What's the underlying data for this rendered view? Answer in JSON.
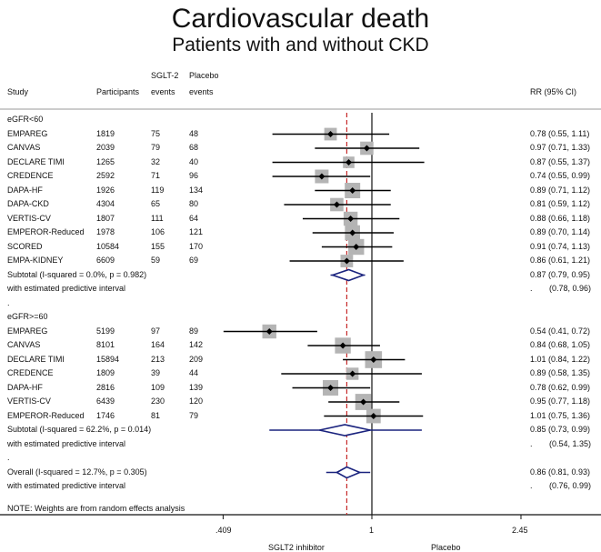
{
  "chart_data": {
    "type": "forest",
    "title": "Cardiovascular death",
    "subtitle": "Patients with and without CKD",
    "headers": {
      "study": "Study",
      "participants": "Participants",
      "sglt2_line1": "SGLT-2",
      "sglt2_line2": "events",
      "placebo_line1": "Placebo",
      "placebo_line2": "events",
      "rr": "RR (95% CI)"
    },
    "x_scale": "log",
    "xticks": [
      0.409,
      1,
      2.45
    ],
    "xtick_labels": [
      ".409",
      "1",
      "2.45"
    ],
    "xlabel_left": "SGLT2 inhibitor",
    "xlabel_right": "Placebo",
    "null_line": 1,
    "overall_line": 0.86,
    "rows": [
      {
        "kind": "group",
        "label": "eGFR<60"
      },
      {
        "kind": "study",
        "label": "EMPAREG",
        "n": "1819",
        "sglt2": "75",
        "placebo": "48",
        "rr": 0.78,
        "lo": 0.55,
        "hi": 1.11,
        "text": "0.78 (0.55, 1.11)",
        "weight": 0.6
      },
      {
        "kind": "study",
        "label": "CANVAS",
        "n": "2039",
        "sglt2": "79",
        "placebo": "68",
        "rr": 0.97,
        "lo": 0.71,
        "hi": 1.33,
        "text": "0.97 (0.71, 1.33)",
        "weight": 0.7
      },
      {
        "kind": "study",
        "label": "DECLARE TIMI",
        "n": "1265",
        "sglt2": "32",
        "placebo": "40",
        "rr": 0.87,
        "lo": 0.55,
        "hi": 1.37,
        "text": "0.87 (0.55, 1.37)",
        "weight": 0.45
      },
      {
        "kind": "study",
        "label": "CREDENCE",
        "n": "2592",
        "sglt2": "71",
        "placebo": "96",
        "rr": 0.74,
        "lo": 0.55,
        "hi": 0.99,
        "text": "0.74 (0.55, 0.99)",
        "weight": 0.75
      },
      {
        "kind": "study",
        "label": "DAPA-HF",
        "n": "1926",
        "sglt2": "119",
        "placebo": "134",
        "rr": 0.89,
        "lo": 0.71,
        "hi": 1.12,
        "text": "0.89 (0.71, 1.12)",
        "weight": 1.0
      },
      {
        "kind": "study",
        "label": "DAPA-CKD",
        "n": "4304",
        "sglt2": "65",
        "placebo": "80",
        "rr": 0.81,
        "lo": 0.59,
        "hi": 1.12,
        "text": "0.81 (0.59, 1.12)",
        "weight": 0.7
      },
      {
        "kind": "study",
        "label": "VERTIS-CV",
        "n": "1807",
        "sglt2": "111",
        "placebo": "64",
        "rr": 0.88,
        "lo": 0.66,
        "hi": 1.18,
        "text": "0.88 (0.66, 1.18)",
        "weight": 0.8
      },
      {
        "kind": "study",
        "label": "EMPEROR-Reduced",
        "n": "1978",
        "sglt2": "106",
        "placebo": "121",
        "rr": 0.89,
        "lo": 0.7,
        "hi": 1.14,
        "text": "0.89 (0.70, 1.14)",
        "weight": 0.95
      },
      {
        "kind": "study",
        "label": "SCORED",
        "n": "10584",
        "sglt2": "155",
        "placebo": "170",
        "rr": 0.91,
        "lo": 0.74,
        "hi": 1.13,
        "text": "0.91 (0.74, 1.13)",
        "weight": 1.05
      },
      {
        "kind": "study",
        "label": "EMPA-KIDNEY",
        "n": "6609",
        "sglt2": "59",
        "placebo": "69",
        "rr": 0.86,
        "lo": 0.61,
        "hi": 1.21,
        "text": "0.86 (0.61, 1.21)",
        "weight": 0.6
      },
      {
        "kind": "subtotal",
        "label": "Subtotal  (I-squared = 0.0%, p = 0.982)",
        "rr": 0.87,
        "lo": 0.79,
        "hi": 0.95,
        "text": "0.87 (0.79, 0.95)",
        "pi_lo": 0.78,
        "pi_hi": 0.96
      },
      {
        "kind": "pi",
        "label": "with estimated predictive interval",
        "dot": ".",
        "text": "(0.78, 0.96)"
      },
      {
        "kind": "blank",
        "label": "."
      },
      {
        "kind": "group",
        "label": "eGFR>=60"
      },
      {
        "kind": "study",
        "label": "EMPAREG",
        "n": "5199",
        "sglt2": "97",
        "placebo": "89",
        "rr": 0.54,
        "lo": 0.41,
        "hi": 0.72,
        "text": "0.54 (0.41, 0.72)",
        "weight": 0.8
      },
      {
        "kind": "study",
        "label": "CANVAS",
        "n": "8101",
        "sglt2": "164",
        "placebo": "142",
        "rr": 0.84,
        "lo": 0.68,
        "hi": 1.05,
        "text": "0.84 (0.68, 1.05)",
        "weight": 1.05
      },
      {
        "kind": "study",
        "label": "DECLARE TIMI",
        "n": "15894",
        "sglt2": "213",
        "placebo": "209",
        "rr": 1.01,
        "lo": 0.84,
        "hi": 1.22,
        "text": "1.01 (0.84, 1.22)",
        "weight": 1.2
      },
      {
        "kind": "study",
        "label": "CREDENCE",
        "n": "1809",
        "sglt2": "39",
        "placebo": "44",
        "rr": 0.89,
        "lo": 0.58,
        "hi": 1.35,
        "text": "0.89 (0.58, 1.35)",
        "weight": 0.55
      },
      {
        "kind": "study",
        "label": "DAPA-HF",
        "n": "2816",
        "sglt2": "109",
        "placebo": "139",
        "rr": 0.78,
        "lo": 0.62,
        "hi": 0.99,
        "text": "0.78 (0.62, 0.99)",
        "weight": 1.0
      },
      {
        "kind": "study",
        "label": "VERTIS-CV",
        "n": "6439",
        "sglt2": "230",
        "placebo": "120",
        "rr": 0.95,
        "lo": 0.77,
        "hi": 1.18,
        "text": "0.95 (0.77, 1.18)",
        "weight": 1.1
      },
      {
        "kind": "study",
        "label": "EMPEROR-Reduced",
        "n": "1746",
        "sglt2": "81",
        "placebo": "79",
        "rr": 1.01,
        "lo": 0.75,
        "hi": 1.36,
        "text": "1.01 (0.75, 1.36)",
        "weight": 0.85
      },
      {
        "kind": "subtotal",
        "label": "Subtotal  (I-squared = 62.2%, p = 0.014)",
        "rr": 0.85,
        "lo": 0.73,
        "hi": 0.99,
        "text": "0.85 (0.73, 0.99)",
        "pi_lo": 0.54,
        "pi_hi": 1.35
      },
      {
        "kind": "pi",
        "label": "with estimated predictive interval",
        "dot": ".",
        "text": "(0.54, 1.35)"
      },
      {
        "kind": "blank",
        "label": "."
      },
      {
        "kind": "subtotal",
        "label": "Overall  (I-squared = 12.7%, p = 0.305)",
        "rr": 0.86,
        "lo": 0.81,
        "hi": 0.93,
        "text": "0.86 (0.81, 0.93)",
        "pi_lo": 0.76,
        "pi_hi": 0.99
      },
      {
        "kind": "pi",
        "label": "with estimated predictive interval",
        "dot": ".",
        "text": "(0.76, 0.99)"
      }
    ],
    "note": "NOTE: Weights are from random effects analysis",
    "colors": {
      "box": "#b4b4b4",
      "diamond": "#1a237e",
      "overall_line": "#c62828",
      "text": "#111111"
    }
  }
}
